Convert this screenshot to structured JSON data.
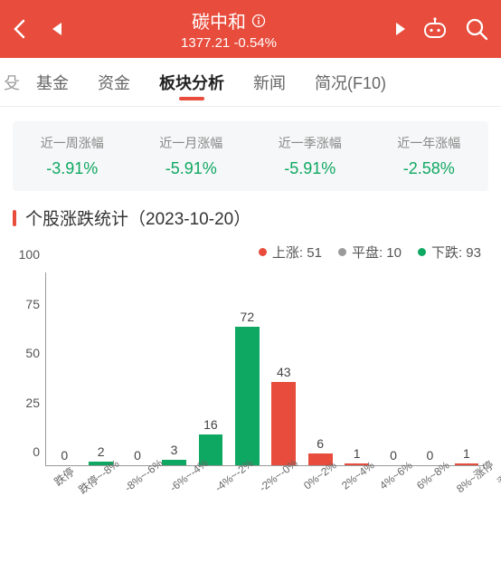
{
  "header": {
    "title": "碳中和",
    "index_value": "1377.21",
    "change_pct": "-0.54%",
    "accent": "#e74c3c"
  },
  "tabs": {
    "left_clip": "殳",
    "items": [
      "基金",
      "资金",
      "板块分析",
      "新闻",
      "简况(F10)"
    ],
    "active_index": 2
  },
  "period_stats": [
    {
      "label": "近一周涨幅",
      "value": "-3.91%",
      "color": "#0fa862"
    },
    {
      "label": "近一月涨幅",
      "value": "-5.91%",
      "color": "#0fa862"
    },
    {
      "label": "近一季涨幅",
      "value": "-5.91%",
      "color": "#0fa862"
    },
    {
      "label": "近一年涨幅",
      "value": "-2.58%",
      "color": "#0fa862"
    }
  ],
  "section": {
    "title_prefix": "个股涨跌统计",
    "date": "（2023-10-20）"
  },
  "legend": [
    {
      "label": "上涨",
      "count": 51,
      "color": "#e74c3c"
    },
    {
      "label": "平盘",
      "count": 10,
      "color": "#9a9a9a"
    },
    {
      "label": "下跌",
      "count": 93,
      "color": "#0fa862"
    }
  ],
  "chart": {
    "ylim": [
      0,
      100
    ],
    "yticks": [
      0,
      25,
      50,
      75,
      100
    ],
    "grid_color": "#999",
    "background_color": "#ffffff",
    "bar_width_ratio": 0.66,
    "label_fontsize": 14,
    "xlabel_fontsize": 12,
    "xlabel_rotation": -38,
    "bars": [
      {
        "x": "跌停",
        "value": 0,
        "color": "#0fa862"
      },
      {
        "x": "跌停~-8%",
        "value": 2,
        "color": "#0fa862"
      },
      {
        "x": "-8%~-6%",
        "value": 0,
        "color": "#0fa862"
      },
      {
        "x": "-6%~-4%",
        "value": 3,
        "color": "#0fa862"
      },
      {
        "x": "-4%~-2%",
        "value": 16,
        "color": "#0fa862"
      },
      {
        "x": "-2%~-0%",
        "value": 72,
        "color": "#0fa862"
      },
      {
        "x": "0%~2%",
        "value": 43,
        "color": "#e74c3c"
      },
      {
        "x": "2%~4%",
        "value": 6,
        "color": "#e74c3c"
      },
      {
        "x": "4%~6%",
        "value": 1,
        "color": "#e74c3c"
      },
      {
        "x": "6%~8%",
        "value": 0,
        "color": "#e74c3c"
      },
      {
        "x": "8%~涨停",
        "value": 0,
        "color": "#e74c3c"
      },
      {
        "x": "涨停",
        "value": 1,
        "color": "#e74c3c"
      }
    ]
  }
}
